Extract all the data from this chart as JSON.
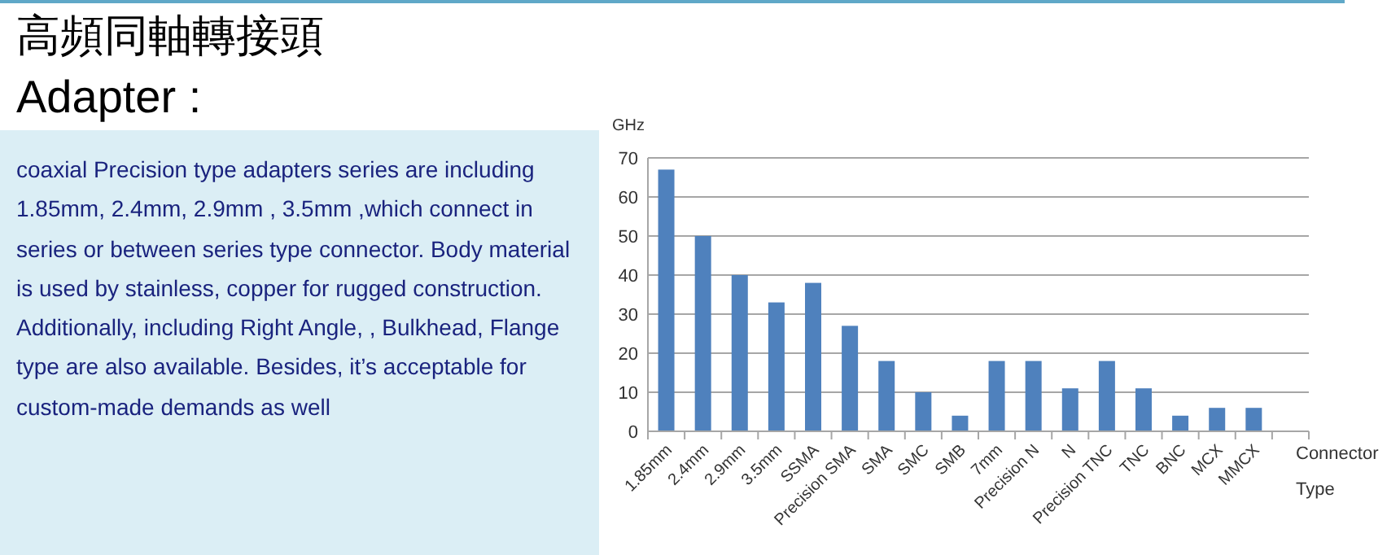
{
  "chart_data": {
    "type": "bar",
    "title": "高頻同軸轉接頭",
    "subtitle": "Adapter :",
    "ylabel": "GHz",
    "xlabel": "Connector Type",
    "annotations": [
      "coaxial Precision type adapters series are including 1.85mm, 2.4mm, 2.9mm , 3.5mm ,which connect in series or between series type connector. Body material is used by stainless, copper for rugged construction. Additionally, including Right Angle, , Bulkhead, Flange type are also available. Besides, it’s acceptable for custom-made demands as well"
    ],
    "categories": [
      "1.85mm",
      "2.4mm",
      "2.9mm",
      "3.5mm",
      "SSMA",
      "Precision SMA",
      "SMA",
      "SMC",
      "SMB",
      "7mm",
      "Precision N",
      "N",
      "Precision TNC",
      "TNC",
      "BNC",
      "MCX",
      "MMCX",
      null
    ],
    "values": [
      67,
      50,
      40,
      33,
      38,
      27,
      18,
      10,
      4,
      18,
      18,
      11,
      18,
      11,
      4,
      6,
      6,
      null
    ],
    "color": "#4f81bd",
    "ylim": [
      0,
      70
    ],
    "yticks": [
      0,
      10,
      20,
      30,
      40,
      50,
      60,
      70
    ],
    "grid": "y"
  }
}
